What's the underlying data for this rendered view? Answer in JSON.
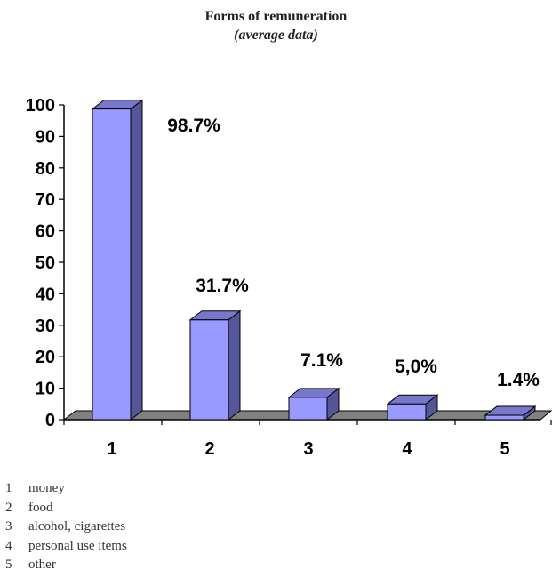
{
  "chart_data": {
    "type": "bar",
    "title": "Forms of remuneration",
    "subtitle": "(average data)",
    "categories": [
      "1",
      "2",
      "3",
      "4",
      "5"
    ],
    "values": [
      98.7,
      31.7,
      7.1,
      5.0,
      1.4
    ],
    "data_labels": [
      "98.7%",
      "31.7%",
      "7.1%",
      "5,0%",
      "1.4%"
    ],
    "xlabel": "",
    "ylabel": "",
    "ylim": [
      0,
      100
    ],
    "yticks": [
      0,
      10,
      20,
      30,
      40,
      50,
      60,
      70,
      80,
      90,
      100
    ],
    "grid": false,
    "style": "3d",
    "colors": {
      "bar_front": "#9999ff",
      "bar_top": "#7777cc",
      "bar_side": "#555599",
      "floor": "#808080",
      "outline": "#000000"
    }
  },
  "legend": [
    {
      "num": "1",
      "label": "money"
    },
    {
      "num": "2",
      "label": "food"
    },
    {
      "num": "3",
      "label": "alcohol, cigarettes"
    },
    {
      "num": "4",
      "label": "personal use items"
    },
    {
      "num": "5",
      "label": "other"
    }
  ]
}
